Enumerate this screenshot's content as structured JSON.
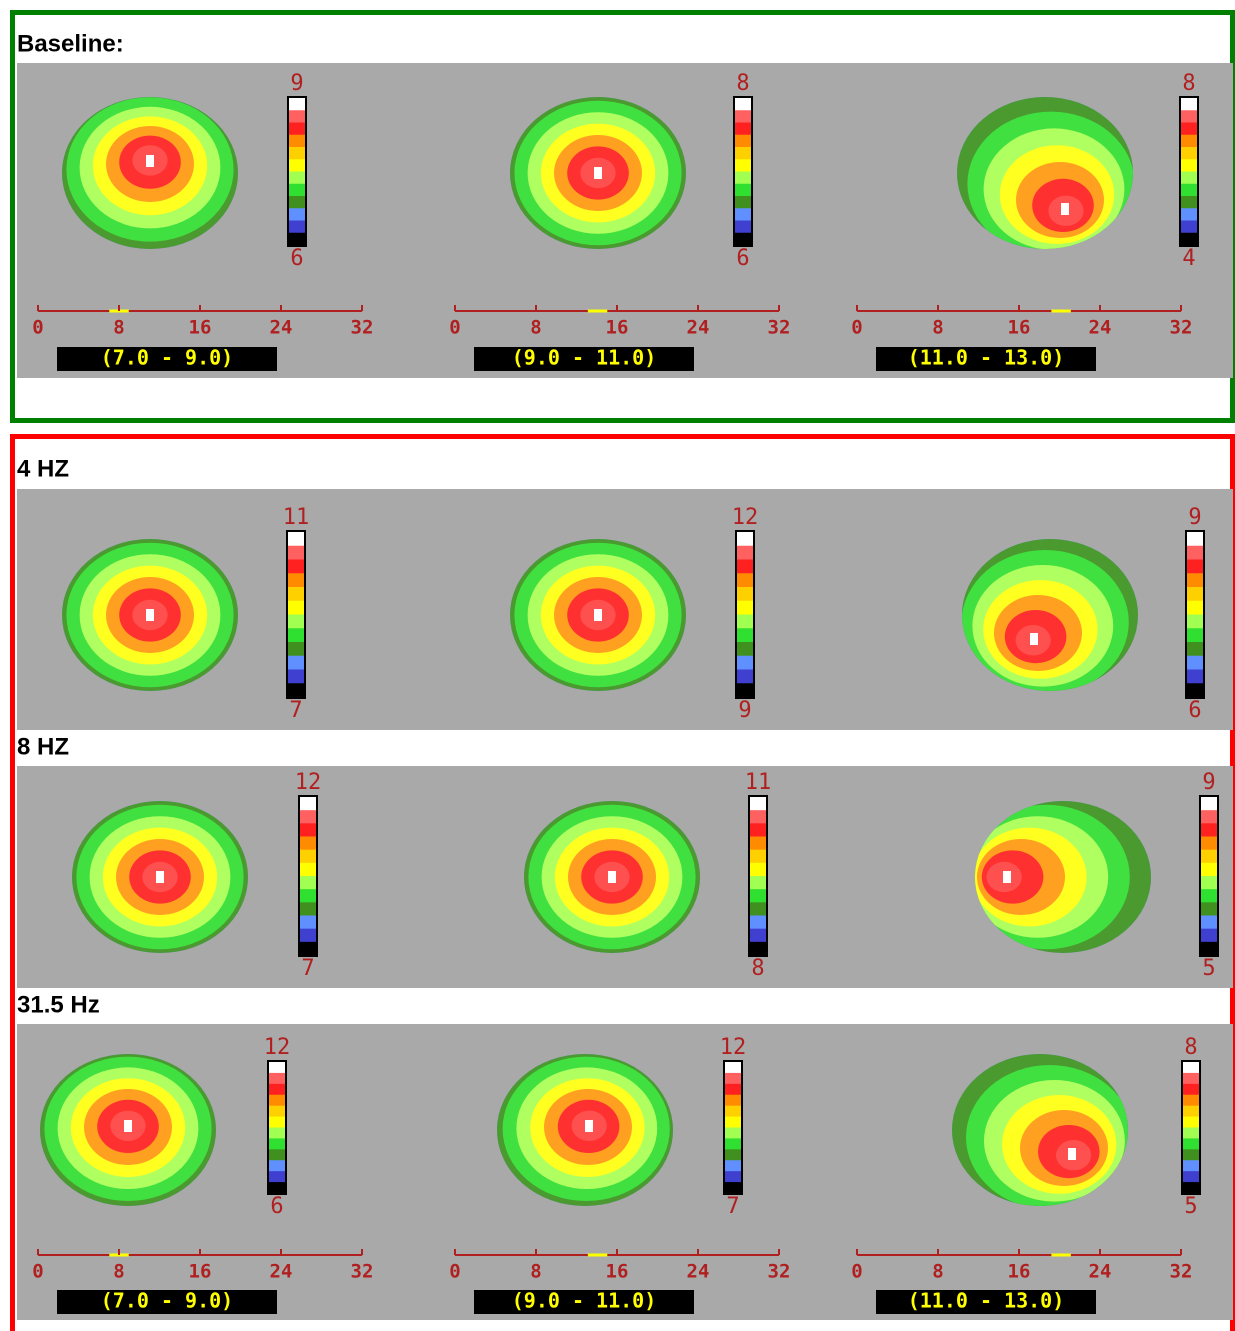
{
  "panels": [
    {
      "title": "Baseline:",
      "maps": [
        {
          "max": "9",
          "min": "6"
        },
        {
          "max": "8",
          "min": "6"
        },
        {
          "max": "8",
          "min": "4"
        }
      ],
      "axis": {
        "ticks": [
          "0",
          "8",
          "16",
          "24",
          "32"
        ],
        "bands": [
          "(7.0 - 9.0)",
          "(9.0 - 11.0)",
          "(11.0 - 13.0)"
        ]
      }
    },
    {
      "title": "4 HZ",
      "maps": [
        {
          "max": "11",
          "min": "7"
        },
        {
          "max": "12",
          "min": "9"
        },
        {
          "max": "9",
          "min": "6"
        }
      ]
    },
    {
      "title": "8 HZ",
      "maps": [
        {
          "max": "12",
          "min": "7"
        },
        {
          "max": "11",
          "min": "8"
        },
        {
          "max": "9",
          "min": "5"
        }
      ]
    },
    {
      "title": "31.5 Hz",
      "maps": [
        {
          "max": "12",
          "min": "6"
        },
        {
          "max": "12",
          "min": "7"
        },
        {
          "max": "8",
          "min": "5"
        }
      ],
      "axis": {
        "ticks": [
          "0",
          "8",
          "16",
          "24",
          "32"
        ],
        "bands": [
          "(7.0 - 9.0)",
          "(9.0 - 11.0)",
          "(11.0 - 13.0)"
        ]
      }
    }
  ]
}
